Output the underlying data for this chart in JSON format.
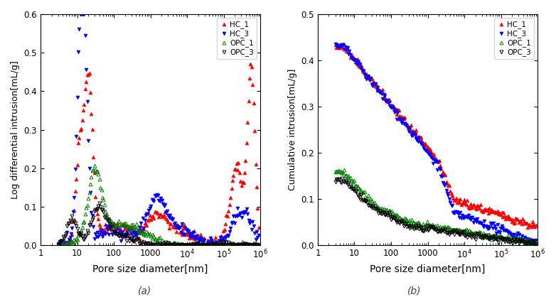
{
  "fig_width": 7.82,
  "fig_height": 4.18,
  "dpi": 100,
  "subplot_a": {
    "xlabel": "Pore size diameter[nm]",
    "ylabel": "Log differential intrusion[mL/g]",
    "xlim": [
      1,
      1000000
    ],
    "ylim": [
      0,
      0.6
    ],
    "yticks": [
      0.0,
      0.1,
      0.2,
      0.3,
      0.4,
      0.5,
      0.6
    ],
    "xtick_labels": [
      "1",
      "10",
      "100",
      "1000",
      "10$^4$",
      "10$^5$",
      "10$^6$"
    ],
    "label_a": "(a)"
  },
  "subplot_b": {
    "xlabel": "Pore size diameter[nm]",
    "ylabel": "Cumulative intrusion[mL/g]",
    "xlim": [
      1,
      1000000
    ],
    "ylim": [
      0,
      0.5
    ],
    "yticks": [
      0.0,
      0.1,
      0.2,
      0.3,
      0.4,
      0.5
    ],
    "xtick_labels": [
      "1",
      "10",
      "100",
      "1000",
      "10$^4$",
      "10$^5$",
      "10$^6$"
    ],
    "label_b": "(b)"
  }
}
